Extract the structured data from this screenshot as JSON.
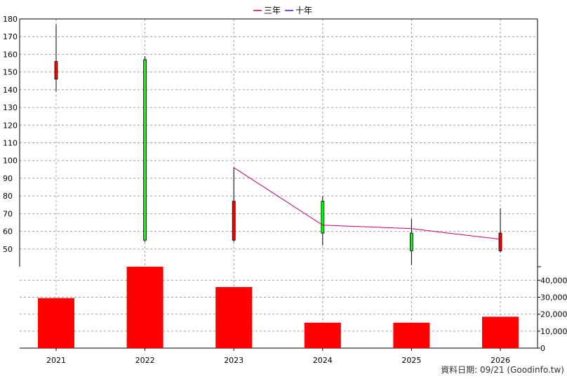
{
  "legend": [
    {
      "label": "三年",
      "color": "#cc0066"
    },
    {
      "label": "十年",
      "color": "#6600cc"
    }
  ],
  "footer": "資料日期: 09/21  (Goodinfo.tw)",
  "chart_data": {
    "type": "candlestick+bar",
    "categories": [
      "2021",
      "2022",
      "2023",
      "2024",
      "2025",
      "2026"
    ],
    "price_axis": {
      "ylim": [
        40,
        180
      ],
      "ticks": [
        50,
        60,
        70,
        80,
        90,
        100,
        110,
        120,
        130,
        140,
        150,
        160,
        170,
        180
      ]
    },
    "candles": [
      {
        "open": 146,
        "high": 177,
        "low": 139,
        "close": 156,
        "color": "#ff0000"
      },
      {
        "open": 157,
        "high": 159,
        "low": 54,
        "close": 55,
        "color": "#00ff00"
      },
      {
        "open": 55,
        "high": 96,
        "low": 54,
        "close": 77,
        "color": "#ff0000"
      },
      {
        "open": 77,
        "high": 80,
        "low": 52,
        "close": 59,
        "color": "#00ff00"
      },
      {
        "open": 59,
        "high": 67,
        "low": 41,
        "close": 49,
        "color": "#00ff00"
      },
      {
        "open": 49,
        "high": 73,
        "low": 48,
        "close": 59,
        "color": "#ff0000"
      }
    ],
    "series": [
      {
        "name": "三年",
        "color": "#cc0066",
        "values": [
          null,
          null,
          96,
          63.5,
          61.5,
          55.5
        ]
      }
    ],
    "volume_axis": {
      "ylim": [
        0,
        48000
      ],
      "ticks": [
        0,
        10000,
        20000,
        30000,
        40000
      ],
      "tick_labels": [
        "0",
        "10,000",
        "20,000",
        "30,000",
        "40,000"
      ]
    },
    "volume": {
      "values": [
        29500,
        48000,
        36000,
        15000,
        15000,
        18500
      ],
      "color": "#ff0000"
    },
    "grid": true
  }
}
